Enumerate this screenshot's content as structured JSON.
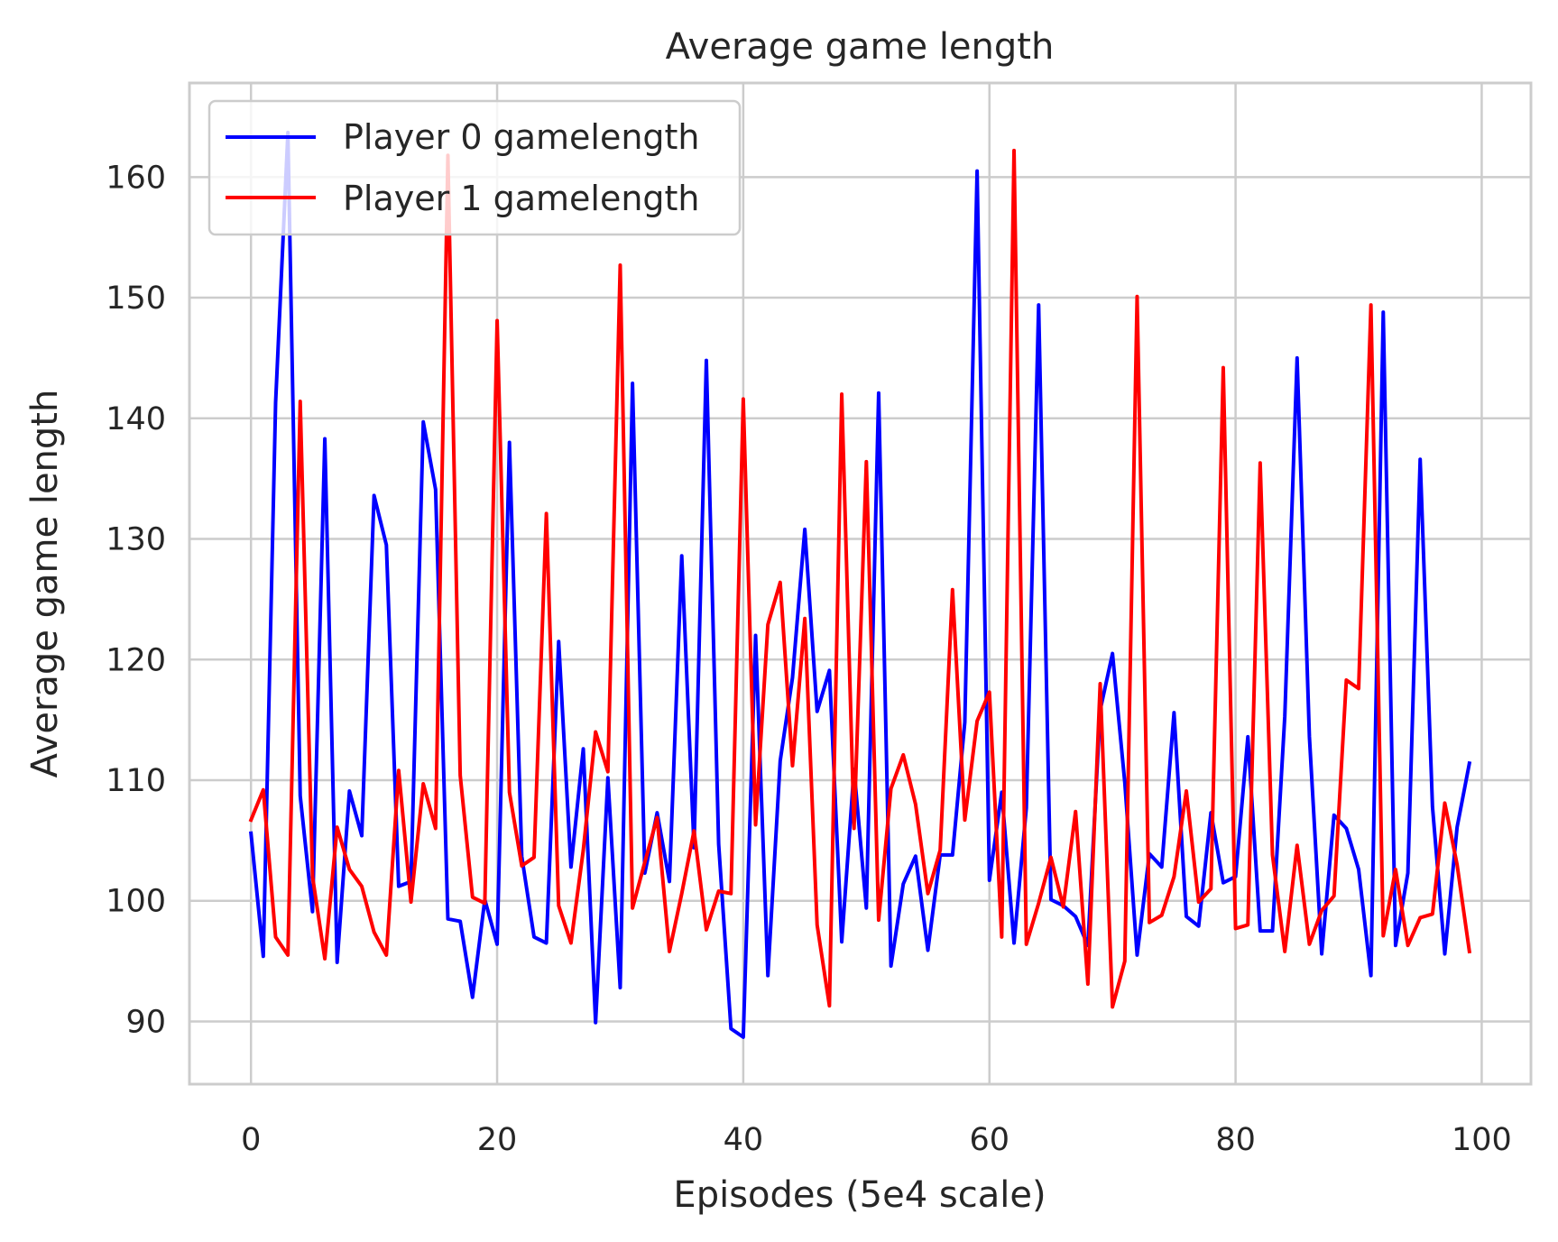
{
  "chart_data": {
    "type": "line",
    "title": "Average game length",
    "xlabel": "Episodes (5e4 scale)",
    "ylabel": "Average game length",
    "xlim": [
      -5,
      104
    ],
    "ylim": [
      84.8,
      167.8
    ],
    "xticks": [
      0,
      20,
      40,
      60,
      80,
      100
    ],
    "yticks": [
      90,
      100,
      110,
      120,
      130,
      140,
      150,
      160
    ],
    "grid": true,
    "legend_position": "upper-left",
    "series": [
      {
        "name": "Player 0 gamelength",
        "color": "#0000ff",
        "values": [
          105.6,
          95.4,
          141.3,
          163.7,
          108.7,
          99.1,
          138.3,
          94.9,
          109.1,
          105.4,
          133.6,
          129.5,
          101.2,
          101.6,
          139.7,
          134.1,
          98.5,
          98.3,
          92.0,
          100.1,
          96.4,
          138.0,
          103.7,
          97.0,
          96.5,
          121.5,
          102.8,
          112.6,
          89.9,
          110.2,
          92.8,
          142.9,
          102.3,
          107.3,
          101.6,
          128.6,
          104.4,
          144.8,
          104.7,
          89.4,
          88.7,
          122.0,
          93.8,
          111.6,
          118.5,
          130.8,
          115.7,
          119.1,
          96.6,
          110.9,
          99.4,
          142.1,
          94.6,
          101.4,
          103.7,
          95.9,
          103.8,
          103.8,
          114.8,
          160.5,
          101.7,
          109.0,
          96.5,
          107.7,
          149.4,
          100.1,
          99.6,
          98.7,
          96.3,
          115.8,
          120.5,
          109.8,
          95.5,
          103.9,
          102.8,
          115.6,
          98.7,
          97.9,
          107.3,
          101.5,
          102.0,
          113.6,
          97.5,
          97.5,
          115.3,
          145.0,
          113.6,
          95.6,
          107.1,
          106.0,
          102.6,
          93.8,
          148.8,
          96.3,
          102.3,
          136.6,
          107.8,
          95.6,
          106.1,
          111.4
        ]
      },
      {
        "name": "Player 1 gamelength",
        "color": "#ff0000",
        "values": [
          106.7,
          109.2,
          97.0,
          95.5,
          141.4,
          102.0,
          95.2,
          106.1,
          102.6,
          101.2,
          97.4,
          95.5,
          110.8,
          99.9,
          109.7,
          106.0,
          161.8,
          110.4,
          100.3,
          99.8,
          148.1,
          109.0,
          102.9,
          103.6,
          132.1,
          99.6,
          96.5,
          104.2,
          114.0,
          110.7,
          152.7,
          99.4,
          103.2,
          106.9,
          95.8,
          100.6,
          105.8,
          97.6,
          100.8,
          100.6,
          141.6,
          106.3,
          122.9,
          126.4,
          111.2,
          123.4,
          98.0,
          91.3,
          142.0,
          106.0,
          136.4,
          98.4,
          109.3,
          112.1,
          108.0,
          100.6,
          104.2,
          125.8,
          106.7,
          114.9,
          117.3,
          97.0,
          162.2,
          96.4,
          99.8,
          103.6,
          99.5,
          107.4,
          93.1,
          118.0,
          91.2,
          95.0,
          150.1,
          98.2,
          98.8,
          102.0,
          109.1,
          99.9,
          101.0,
          144.2,
          97.7,
          98.0,
          136.3,
          103.8,
          95.8,
          104.6,
          96.4,
          99.2,
          100.4,
          118.3,
          117.6,
          149.4,
          97.1,
          102.6,
          96.3,
          98.6,
          98.9,
          108.1,
          103.0,
          95.8
        ]
      }
    ]
  }
}
